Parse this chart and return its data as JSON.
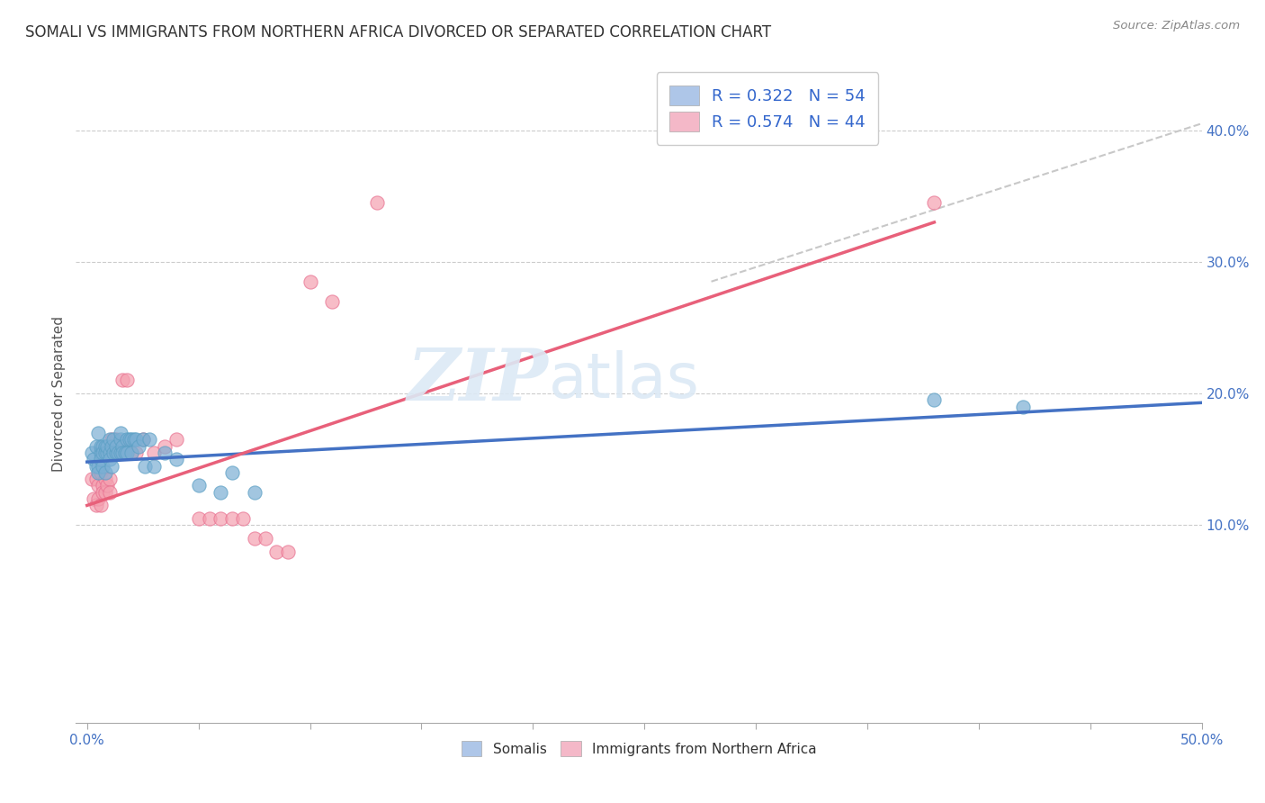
{
  "title": "SOMALI VS IMMIGRANTS FROM NORTHERN AFRICA DIVORCED OR SEPARATED CORRELATION CHART",
  "source": "Source: ZipAtlas.com",
  "xlabel_ticks": [
    "0.0%",
    "",
    "",
    "",
    "",
    "",
    "",
    "",
    "",
    "",
    "50.0%"
  ],
  "xlabel_tick_vals": [
    0.0,
    0.05,
    0.1,
    0.15,
    0.2,
    0.25,
    0.3,
    0.35,
    0.4,
    0.45,
    0.5
  ],
  "ylabel": "Divorced or Separated",
  "ylabel_right_ticks": [
    "10.0%",
    "20.0%",
    "30.0%",
    "40.0%"
  ],
  "ylabel_right_tick_vals": [
    0.1,
    0.2,
    0.3,
    0.4
  ],
  "xlim": [
    -0.005,
    0.5
  ],
  "ylim": [
    -0.05,
    0.45
  ],
  "watermark_zip": "ZIP",
  "watermark_atlas": "atlas",
  "somali_color": "#7bafd4",
  "somali_edge_color": "#5a9fc4",
  "northern_africa_color": "#f4a0b0",
  "northern_africa_edge_color": "#e87090",
  "somali_line_color": "#4472c4",
  "northern_africa_line_color": "#e8607a",
  "dashed_line_color": "#c8c8c8",
  "somali_scatter_x": [
    0.002,
    0.003,
    0.004,
    0.004,
    0.005,
    0.005,
    0.005,
    0.006,
    0.006,
    0.006,
    0.007,
    0.007,
    0.007,
    0.008,
    0.008,
    0.008,
    0.009,
    0.009,
    0.01,
    0.01,
    0.01,
    0.011,
    0.011,
    0.012,
    0.012,
    0.013,
    0.013,
    0.014,
    0.015,
    0.015,
    0.015,
    0.016,
    0.016,
    0.017,
    0.018,
    0.018,
    0.019,
    0.02,
    0.02,
    0.021,
    0.022,
    0.023,
    0.025,
    0.026,
    0.028,
    0.03,
    0.035,
    0.04,
    0.05,
    0.06,
    0.065,
    0.075,
    0.38,
    0.42
  ],
  "somali_scatter_y": [
    0.155,
    0.15,
    0.16,
    0.145,
    0.17,
    0.145,
    0.14,
    0.155,
    0.16,
    0.15,
    0.16,
    0.145,
    0.155,
    0.16,
    0.155,
    0.14,
    0.155,
    0.16,
    0.165,
    0.155,
    0.15,
    0.16,
    0.145,
    0.155,
    0.165,
    0.155,
    0.16,
    0.155,
    0.165,
    0.155,
    0.17,
    0.16,
    0.155,
    0.155,
    0.165,
    0.155,
    0.165,
    0.165,
    0.155,
    0.165,
    0.165,
    0.16,
    0.165,
    0.145,
    0.165,
    0.145,
    0.155,
    0.15,
    0.13,
    0.125,
    0.14,
    0.125,
    0.195,
    0.19
  ],
  "northern_africa_scatter_x": [
    0.002,
    0.003,
    0.004,
    0.004,
    0.005,
    0.005,
    0.006,
    0.006,
    0.007,
    0.007,
    0.008,
    0.008,
    0.009,
    0.01,
    0.01,
    0.011,
    0.012,
    0.012,
    0.013,
    0.014,
    0.015,
    0.015,
    0.016,
    0.017,
    0.018,
    0.02,
    0.022,
    0.025,
    0.03,
    0.035,
    0.04,
    0.05,
    0.055,
    0.06,
    0.065,
    0.07,
    0.075,
    0.08,
    0.085,
    0.09,
    0.1,
    0.11,
    0.13,
    0.38
  ],
  "northern_africa_scatter_y": [
    0.135,
    0.12,
    0.135,
    0.115,
    0.13,
    0.12,
    0.14,
    0.115,
    0.13,
    0.125,
    0.135,
    0.125,
    0.13,
    0.135,
    0.125,
    0.165,
    0.16,
    0.155,
    0.165,
    0.16,
    0.16,
    0.155,
    0.21,
    0.155,
    0.21,
    0.155,
    0.155,
    0.165,
    0.155,
    0.16,
    0.165,
    0.105,
    0.105,
    0.105,
    0.105,
    0.105,
    0.09,
    0.09,
    0.08,
    0.08,
    0.285,
    0.27,
    0.345,
    0.345
  ],
  "somali_trend_x": [
    0.0,
    0.5
  ],
  "somali_trend_y": [
    0.148,
    0.193
  ],
  "northern_africa_trend_x": [
    0.0,
    0.38
  ],
  "northern_africa_trend_y": [
    0.115,
    0.33
  ],
  "dashed_trend_x": [
    0.28,
    0.5
  ],
  "dashed_trend_y": [
    0.285,
    0.405
  ],
  "legend1_label": "R = 0.322   N = 54",
  "legend2_label": "R = 0.574   N = 44",
  "legend1_facecolor": "#aec6e8",
  "legend2_facecolor": "#f4b8c8",
  "bottom_legend1": "Somalis",
  "bottom_legend2": "Immigrants from Northern Africa"
}
